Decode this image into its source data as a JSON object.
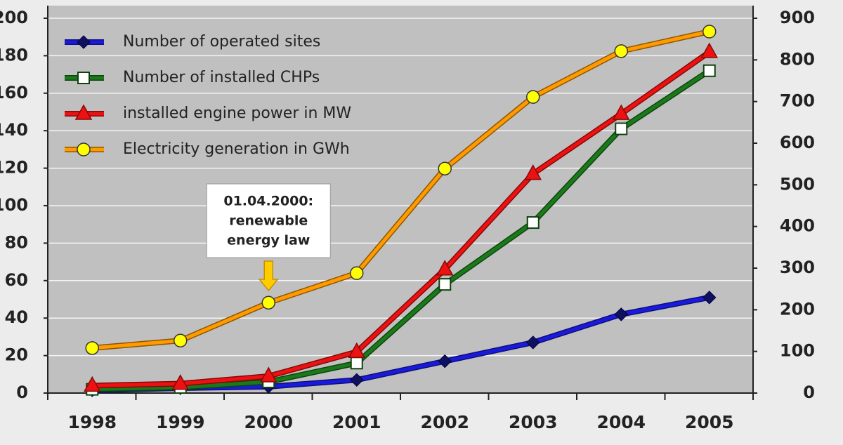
{
  "chart_data": {
    "type": "line",
    "categories": [
      "1998",
      "1999",
      "2000",
      "2001",
      "2002",
      "2003",
      "2004",
      "2005"
    ],
    "series": [
      {
        "name": "Number of operated sites",
        "color": "#1a1adc",
        "marker": "diamond",
        "values": [
          1.5,
          2.6,
          3.4,
          7,
          17,
          27,
          42,
          51
        ]
      },
      {
        "name": "Number of installed CHPs",
        "color": "#1a7a1a",
        "marker": "square",
        "values": [
          2,
          3,
          6,
          16,
          58,
          91,
          141,
          172
        ]
      },
      {
        "name": "installed engine power in MW",
        "color": "#ee1111",
        "marker": "triangle",
        "values": [
          4,
          5,
          9,
          22,
          66,
          117,
          149,
          182
        ]
      },
      {
        "name": "Electricity generation in GWh",
        "color": "#ff9a00",
        "marker": "circle",
        "axis": "y2",
        "values": [
          108,
          126,
          217,
          288,
          539,
          711,
          821,
          868
        ]
      }
    ],
    "ylim": [
      0,
      200
    ],
    "yticks": [
      0,
      20,
      40,
      60,
      80,
      100,
      120,
      140,
      160,
      180,
      200
    ],
    "y2lim": [
      0,
      900
    ],
    "y2ticks": [
      0,
      100,
      200,
      300,
      400,
      500,
      600,
      700,
      800,
      900
    ],
    "grid": true,
    "legend": "upper left",
    "annotation": {
      "category": "2000",
      "lines": [
        "01.04.2000:",
        "renewable",
        "energy law"
      ]
    }
  }
}
